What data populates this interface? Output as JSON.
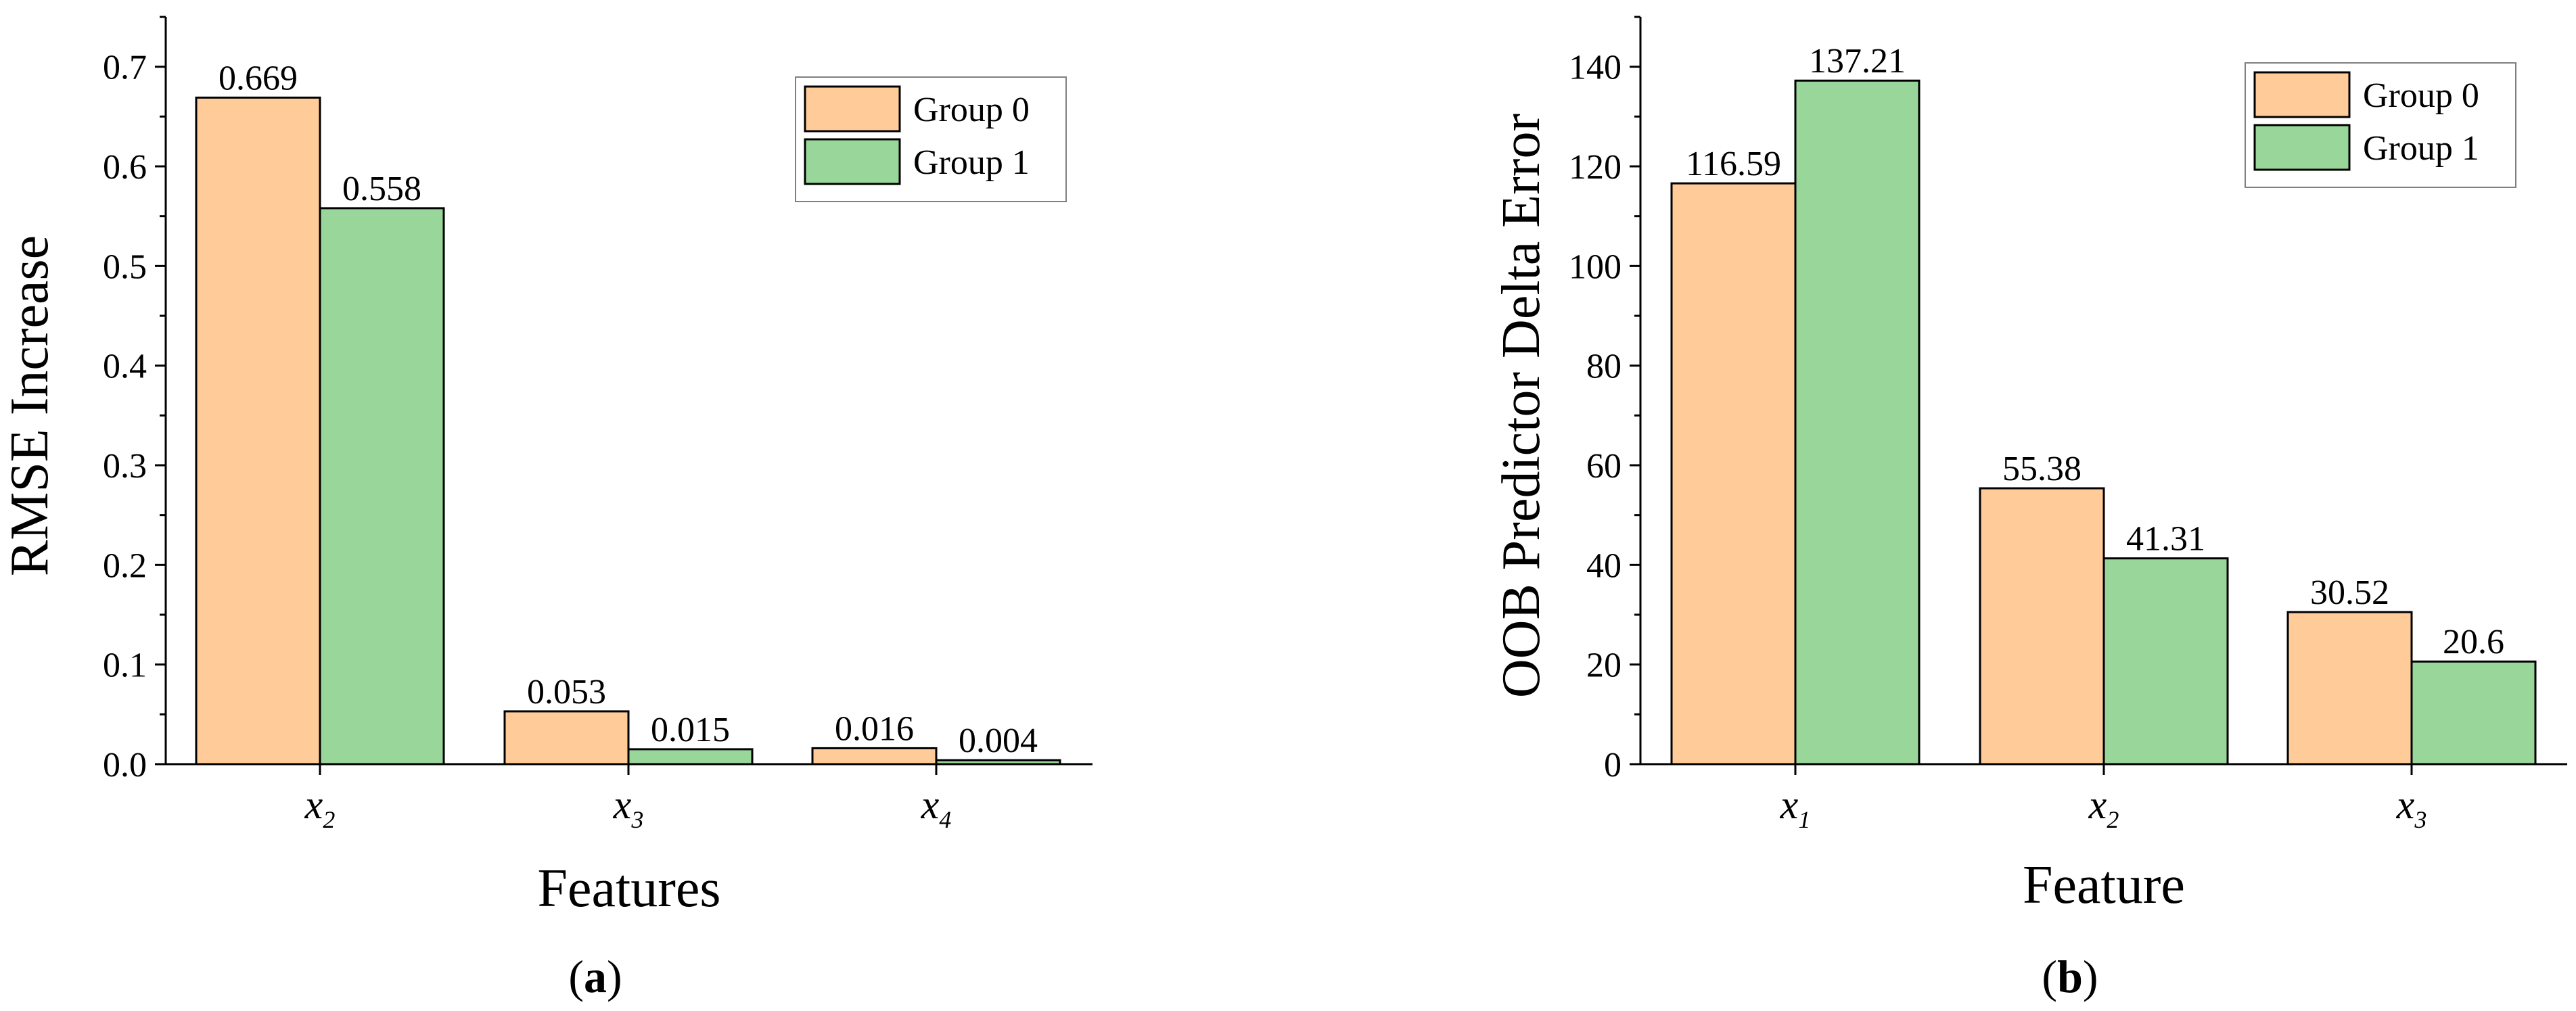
{
  "chart_data": [
    {
      "type": "bar",
      "panel": "a",
      "categories": [
        "x2",
        "x3",
        "x4"
      ],
      "category_display": [
        {
          "base": "x",
          "sub": "2"
        },
        {
          "base": "x",
          "sub": "3"
        },
        {
          "base": "x",
          "sub": "4"
        }
      ],
      "series": [
        {
          "name": "Group 0",
          "values": [
            0.669,
            0.053,
            0.016
          ],
          "labels": [
            "0.669",
            "0.053",
            "0.016"
          ]
        },
        {
          "name": "Group 1",
          "values": [
            0.558,
            0.015,
            0.004
          ],
          "labels": [
            "0.558",
            "0.015",
            "0.004"
          ]
        }
      ],
      "xlabel": "Features",
      "ylabel": "RMSE Increase",
      "ylim": [
        0,
        0.75
      ],
      "yticks": [
        0.0,
        0.1,
        0.2,
        0.3,
        0.4,
        0.5,
        0.6,
        0.7
      ],
      "ytick_labels": [
        "0.0",
        "0.1",
        "0.2",
        "0.3",
        "0.4",
        "0.5",
        "0.6",
        "0.7"
      ],
      "legend_position": "top-right",
      "grid": false
    },
    {
      "type": "bar",
      "panel": "b",
      "categories": [
        "x1",
        "x2",
        "x3"
      ],
      "category_display": [
        {
          "base": "x",
          "sub": "1"
        },
        {
          "base": "x",
          "sub": "2"
        },
        {
          "base": "x",
          "sub": "3"
        }
      ],
      "series": [
        {
          "name": "Group 0",
          "values": [
            116.59,
            55.38,
            30.52
          ],
          "labels": [
            "116.59",
            "55.38",
            "30.52"
          ]
        },
        {
          "name": "Group 1",
          "values": [
            137.21,
            41.31,
            20.6
          ],
          "labels": [
            "137.21",
            "41.31",
            "20.6"
          ]
        }
      ],
      "xlabel": "Feature",
      "ylabel": "OOB Predictor Delta Error",
      "ylim": [
        0,
        150
      ],
      "yticks": [
        0,
        20,
        40,
        60,
        80,
        100,
        120,
        140
      ],
      "ytick_labels": [
        "0",
        "20",
        "40",
        "60",
        "80",
        "100",
        "120",
        "140"
      ],
      "legend_position": "top-right",
      "grid": false
    }
  ],
  "captions": {
    "a": {
      "open": "(",
      "letter": "a",
      "close": ")"
    },
    "b": {
      "open": "(",
      "letter": "b",
      "close": ")"
    }
  },
  "colors": {
    "group0": "#FFCC99",
    "group1": "#99D699",
    "axis": "#000000"
  }
}
